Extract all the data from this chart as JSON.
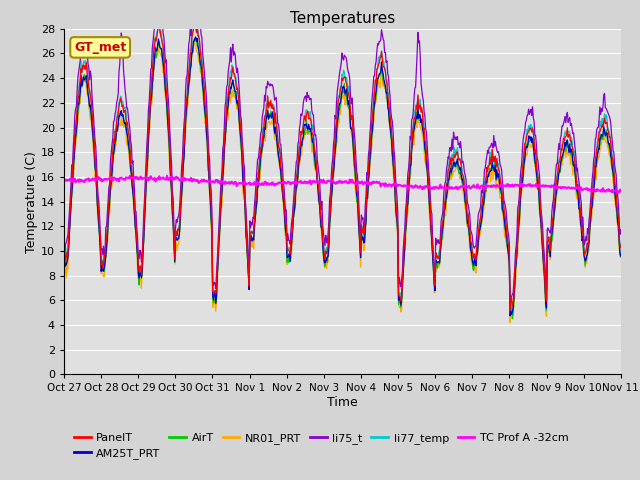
{
  "title": "Temperatures",
  "xlabel": "Time",
  "ylabel": "Temperature (C)",
  "ylim": [
    0,
    28
  ],
  "yticks": [
    0,
    2,
    4,
    6,
    8,
    10,
    12,
    14,
    16,
    18,
    20,
    22,
    24,
    26,
    28
  ],
  "xtick_labels": [
    "Oct 27",
    "Oct 28",
    "Oct 29",
    "Oct 30",
    "Oct 31",
    "Nov 1",
    "Nov 2",
    "Nov 3",
    "Nov 4",
    "Nov 5",
    "Nov 6",
    "Nov 7",
    "Nov 8",
    "Nov 9",
    "Nov 10",
    "Nov 11"
  ],
  "series_colors": {
    "PanelT": "#ff0000",
    "AM25T_PRT": "#0000cc",
    "AirT": "#00cc00",
    "NR01_PRT": "#ffaa00",
    "li75_t": "#8800cc",
    "li77_temp": "#00cccc",
    "TC Prof A -32cm": "#ff00ff"
  },
  "annotation_text": "GT_met",
  "annotation_bg": "#ffff99",
  "annotation_border": "#aa8800",
  "annotation_text_color": "#cc0000",
  "fig_bg": "#d4d4d4",
  "plot_bg": "#e0e0e0"
}
